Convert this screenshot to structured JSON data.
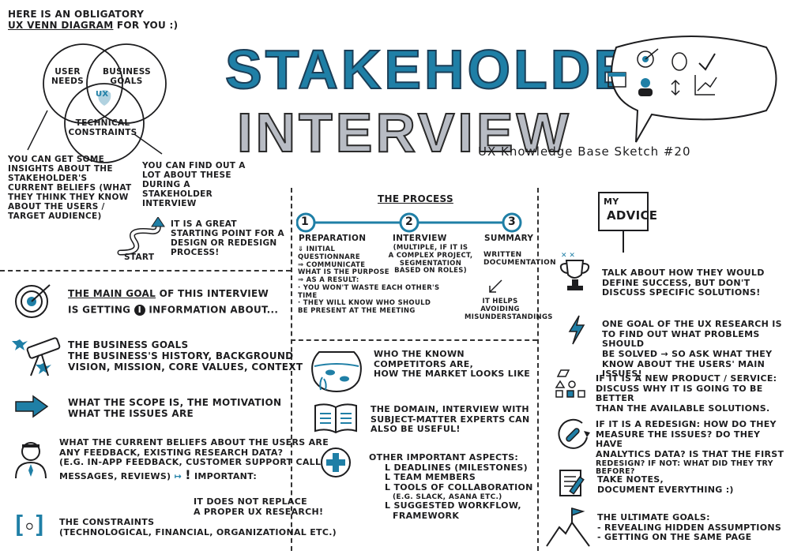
{
  "intro": {
    "line1": "HERE IS AN OBLIGATORY",
    "line2_underlined": "UX VENN DIAGRAM",
    "line2_rest": " FOR YOU :)"
  },
  "venn": {
    "circle_user": "USER NEEDS",
    "circle_business": "BUSINESS GOALS",
    "center": "UX",
    "circle_technical": "TECHNICAL CONSTRAINTS"
  },
  "venn_notes": {
    "left": "YOU CAN GET SOME INSIGHTS ABOUT THE STAKEHOLDER'S CURRENT BELIEFS (WHAT THEY THINK THEY KNOW ABOUT THE USERS / TARGET AUDIENCE)",
    "right": "YOU CAN FIND OUT A LOT ABOUT THESE DURING A STAKEHOLDER INTERVIEW"
  },
  "start_path": {
    "label": "START",
    "note": "IT IS A GREAT STARTING POINT FOR A DESIGN OR REDESIGN PROCESS!"
  },
  "title": {
    "line1": "STAKEHOLDER",
    "line2": "INTERVIEW",
    "subtitle": "UX Knowledge Base Sketch #20"
  },
  "process": {
    "heading": "THE PROCESS",
    "steps": [
      {
        "num": "1",
        "label": "PREPARATION"
      },
      {
        "num": "2",
        "label": "INTERVIEW"
      },
      {
        "num": "3",
        "label": "SUMMARY"
      }
    ],
    "prep_lines": [
      "⇓ INITIAL",
      "QUESTIONNARE",
      "⇒ COMMUNICATE",
      "WHAT IS THE PURPOSE",
      "⇒ AS A RESULT:",
      "· YOU WON'T WASTE EACH OTHER'S TIME",
      "· THEY WILL KNOW WHO SHOULD",
      "BE PRESENT AT THE MEETING"
    ],
    "interview_lines": [
      "(MULTIPLE, IF IT IS",
      "A COMPLEX PROJECT,",
      "SEGMENTATION",
      "BASED ON ROLES)"
    ],
    "summary_lines": [
      "WRITTEN",
      "DOCUMENTATION"
    ],
    "summary_note": [
      "IT HELPS",
      "AVOIDING",
      "MISUNDERSTANDINGS"
    ]
  },
  "goal": {
    "prefix_underlined": "THE MAIN GOAL",
    "middle": " OF THIS INTERVIEW",
    "line2a": "IS GETTING",
    "line2b": "INFORMATION ABOUT..."
  },
  "info_items": [
    {
      "icon": "telescope-icon",
      "lines": [
        "THE BUSINESS GOALS",
        "THE BUSINESS'S HISTORY, BACKGROUND",
        "VISION, MISSION, CORE VALUES, CONTEXT"
      ]
    },
    {
      "icon": "arrow-right-icon",
      "lines": [
        "WHAT THE SCOPE IS, THE MOTIVATION",
        "WHAT THE ISSUES ARE"
      ]
    },
    {
      "icon": "person-icon",
      "lines": [
        "WHAT THE CURRENT BELIEFS ABOUT THE USERS ARE",
        "ANY FEEDBACK, EXISTING RESEARCH DATA?",
        "(E.G. IN-APP FEEDBACK, CUSTOMER SUPPORT CALLS,",
        "MESSAGES, REVIEWS)"
      ]
    },
    {
      "icon": "brackets-icon",
      "lines": [
        "THE CONSTRAINTS",
        "(TECHNOLOGICAL, FINANCIAL, ORGANIZATIONAL ETC.)"
      ]
    }
  ],
  "important": {
    "label": "IMPORTANT:",
    "lines": [
      "IT DOES NOT REPLACE",
      "A PROPER UX RESEARCH!"
    ]
  },
  "middle_items": [
    {
      "icon": "fishbowl-icon",
      "lines": [
        "WHO THE KNOWN",
        "COMPETITORS ARE,",
        "HOW THE MARKET LOOKS LIKE"
      ]
    },
    {
      "icon": "book-icon",
      "lines": [
        "THE DOMAIN, INTERVIEW WITH",
        "SUBJECT-MATTER EXPERTS CAN",
        "ALSO BE USEFUL!"
      ]
    },
    {
      "icon": "plus-icon",
      "lines": [
        "OTHER IMPORTANT ASPECTS:",
        "L DEADLINES (MILESTONES)",
        "L TEAM MEMBERS",
        "L TOOLS OF COLLABORATION",
        "(E.G. SLACK, ASANA ETC.)",
        "L SUGGESTED WORKFLOW,",
        "FRAMEWORK"
      ]
    }
  ],
  "advice": {
    "sign_line1": "MY",
    "sign_line2": "ADVICE",
    "items": [
      {
        "icon": "trophy-icon",
        "lines": [
          "TALK ABOUT HOW THEY WOULD",
          "DEFINE SUCCESS, BUT DON'T",
          "DISCUSS SPECIFIC SOLUTIONS!"
        ]
      },
      {
        "icon": "lightning-icon",
        "lines": [
          "ONE GOAL OF THE UX RESEARCH IS",
          "TO FIND OUT WHAT PROBLEMS SHOULD",
          "BE SOLVED → SO ASK WHAT THEY",
          "KNOW ABOUT THE USERS' MAIN ISSUES!"
        ]
      },
      {
        "icon": "shapes-icon",
        "lines": [
          "IF IT IS A NEW PRODUCT / SERVICE:",
          "DISCUSS WHY IT IS GOING TO BE BETTER",
          "THAN THE AVAILABLE SOLUTIONS."
        ]
      },
      {
        "icon": "wrench-icon",
        "lines": [
          "IF IT IS A REDESIGN: HOW DO THEY",
          "MEASURE THE ISSUES? DO THEY HAVE",
          "ANALYTICS DATA? IS THAT THE FIRST",
          "REDESIGN? IF NOT: WHAT DID THEY TRY BEFORE?"
        ]
      },
      {
        "icon": "notes-icon",
        "lines": [
          "TAKE NOTES,",
          "DOCUMENT EVERYTHING :)"
        ]
      },
      {
        "icon": "mountain-flag-icon",
        "lines": [
          "THE ULTIMATE GOALS:",
          "- REVEALING HIDDEN ASSUMPTIONS",
          "- GETTING ON THE SAME PAGE"
        ]
      }
    ]
  },
  "colors": {
    "accent": "#1f7fa6",
    "ink": "#1d1d1f",
    "gray": "#b8bcc4"
  }
}
